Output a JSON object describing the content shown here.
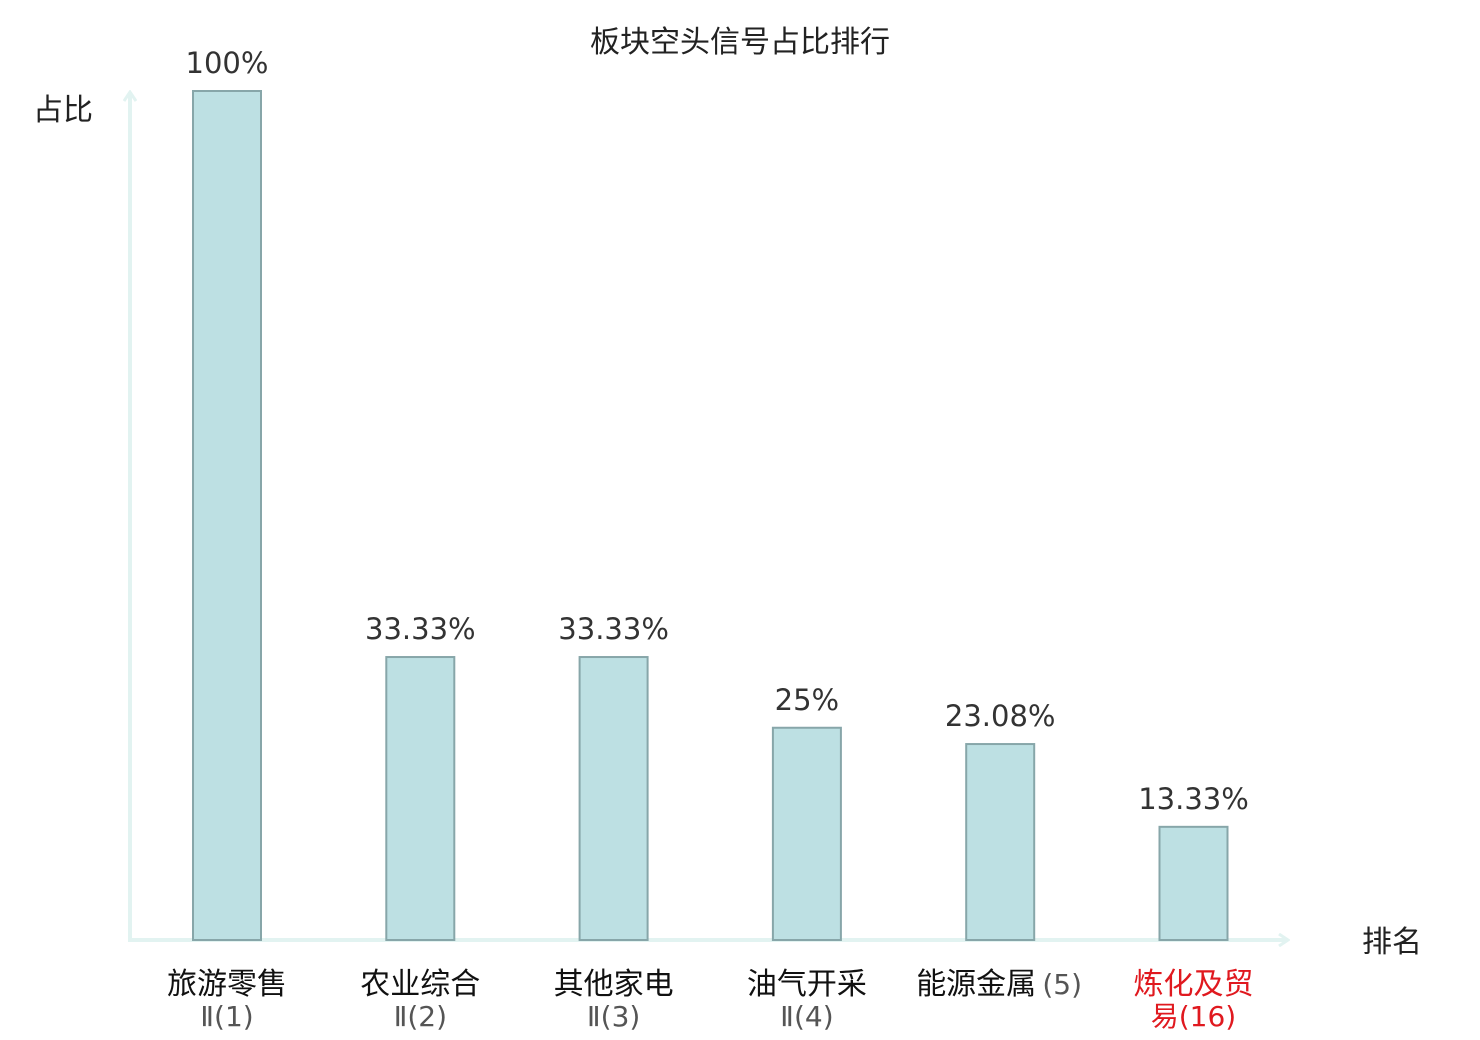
{
  "chart_data": {
    "type": "bar",
    "title": "板块空头信号占比排行",
    "ylabel": "占比",
    "xlabel": "排名",
    "ylim": [
      0,
      100
    ],
    "grid": false,
    "categories": [
      {
        "name": "旅游零售",
        "rank": "Ⅱ(1)",
        "value": 100,
        "label": "100%",
        "highlight": false
      },
      {
        "name": "农业综合",
        "rank": "Ⅱ(2)",
        "value": 33.33,
        "label": "33.33%",
        "highlight": false
      },
      {
        "name": "其他家电",
        "rank": "Ⅱ(3)",
        "value": 33.33,
        "label": "33.33%",
        "highlight": false
      },
      {
        "name": "油气开采",
        "rank": "Ⅱ(4)",
        "value": 25,
        "label": "25%",
        "highlight": false
      },
      {
        "name": "能源金属",
        "rank": "(5)",
        "value": 23.08,
        "label": "23.08%",
        "highlight": false
      },
      {
        "name": "炼化及贸",
        "rank": "易(16)",
        "value": 13.33,
        "label": "13.33%",
        "highlight": true
      }
    ],
    "colors": {
      "bar_fill": "#bde0e3",
      "bar_stroke": "#87a6a9",
      "axis": "#e2f3f1",
      "highlight_text": "#e0191f"
    }
  }
}
